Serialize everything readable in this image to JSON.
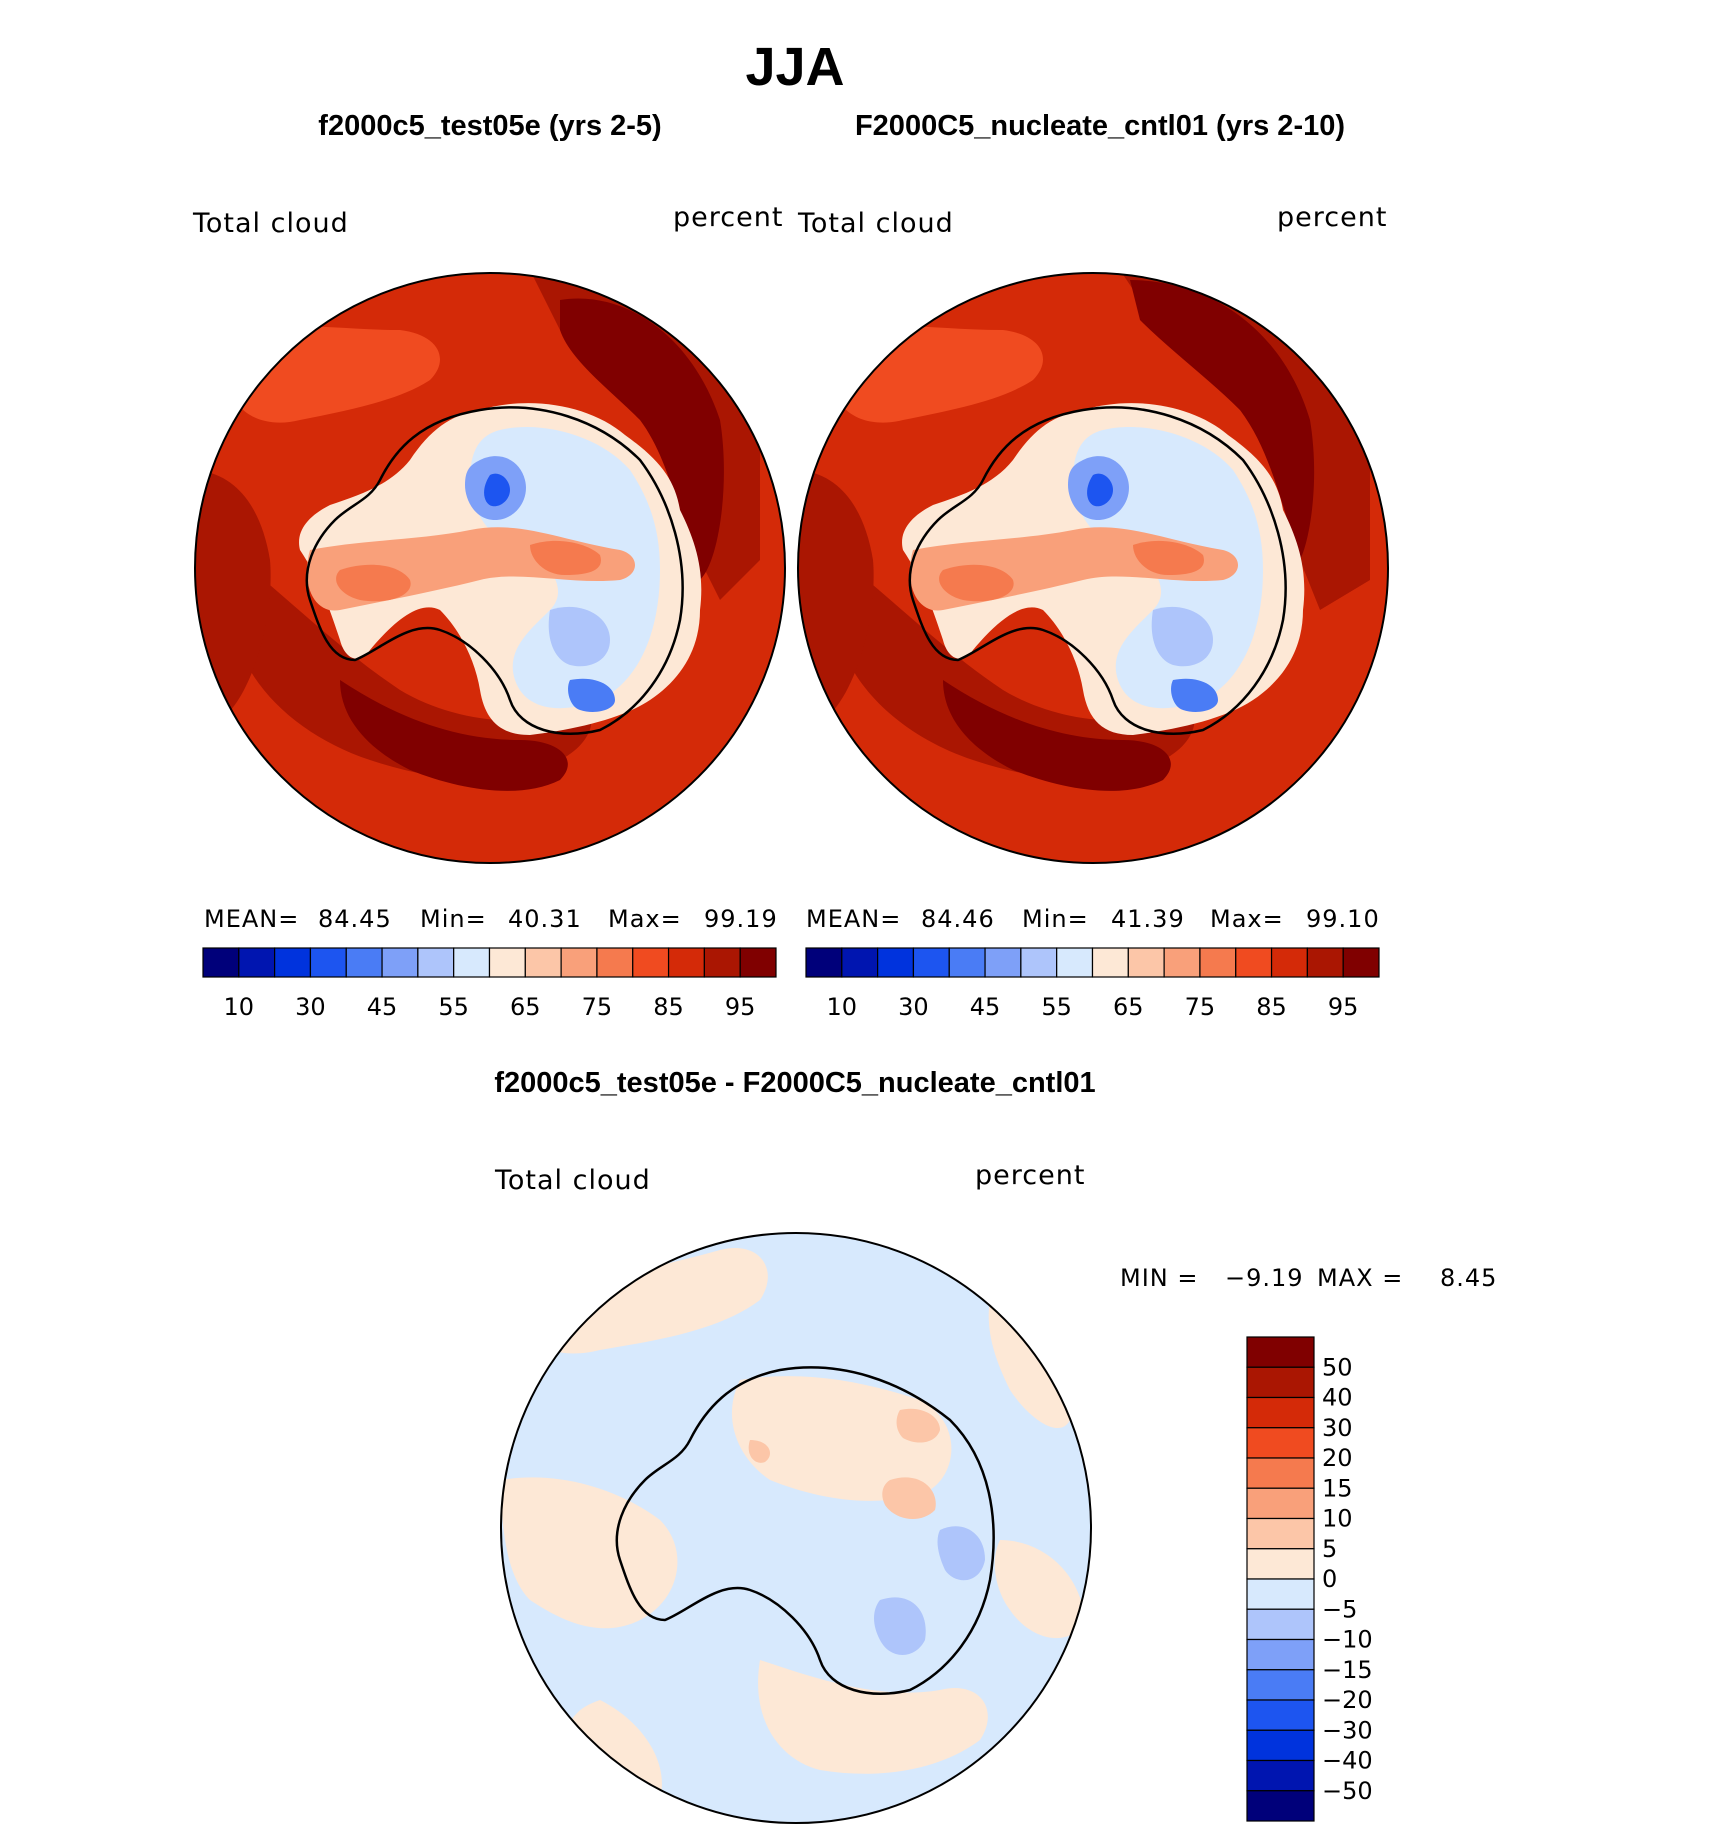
{
  "figure": {
    "title": "JJA",
    "left_panel": {
      "case_title": "f2000c5_test05e (yrs 2-5)",
      "variable": "Total cloud",
      "units": "percent",
      "stats": {
        "mean_label": "MEAN=",
        "mean": "84.45",
        "min_label": "Min=",
        "min": "40.31",
        "max_label": "Max=",
        "max": "99.19"
      }
    },
    "right_panel": {
      "case_title": "F2000C5_nucleate_cntl01 (yrs 2-10)",
      "variable": "Total cloud",
      "units": "percent",
      "stats": {
        "mean_label": "MEAN=",
        "mean": "84.46",
        "min_label": "Min=",
        "min": "41.39",
        "max_label": "Max=",
        "max": "99.10"
      }
    },
    "diff_panel": {
      "case_title": "f2000c5_test05e - F2000C5_nucleate_cntl01",
      "variable": "Total cloud",
      "units": "percent",
      "min_label": "MIN =",
      "min": "−9.19",
      "max_label": "MAX =",
      "max": "8.45"
    },
    "field_colorbar": {
      "colors": [
        "#00007a",
        "#0015b0",
        "#0033dd",
        "#1d55f0",
        "#4a7cf5",
        "#7ea0f8",
        "#aec5fb",
        "#d7e9fd",
        "#fde8d6",
        "#fcc6a8",
        "#f9a07a",
        "#f57a4e",
        "#f04b20",
        "#d42a08",
        "#aa1602",
        "#800000"
      ],
      "labels": [
        "10",
        "30",
        "45",
        "55",
        "65",
        "75",
        "85",
        "95"
      ]
    },
    "diff_colorbar": {
      "colors": [
        "#800000",
        "#aa1602",
        "#d42a08",
        "#f04b20",
        "#f57a4e",
        "#f9a07a",
        "#fcc6a8",
        "#fde8d6",
        "#d7e9fd",
        "#aec5fb",
        "#7ea0f8",
        "#4a7cf5",
        "#1d55f0",
        "#0033dd",
        "#0015b0",
        "#00007a"
      ],
      "labels": [
        "50",
        "40",
        "30",
        "20",
        "15",
        "10",
        "5",
        "0",
        "−5",
        "−10",
        "−15",
        "−20",
        "−30",
        "−40",
        "−50"
      ]
    }
  }
}
